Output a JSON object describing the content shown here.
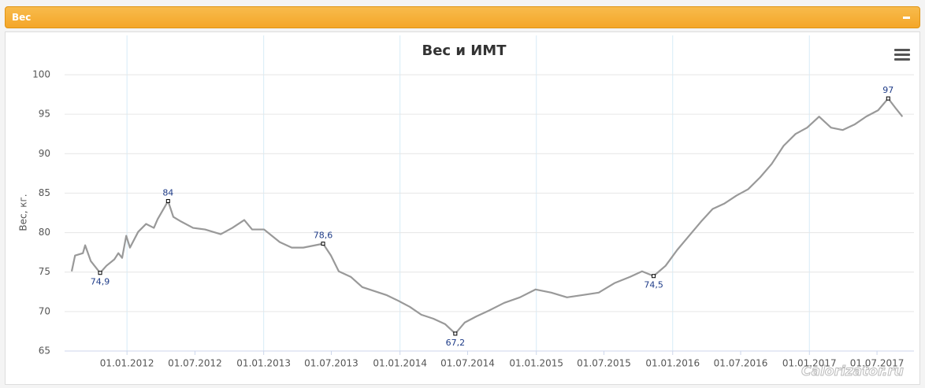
{
  "panel_title": "Вес",
  "watermark": "Calorizator.ru",
  "chart_data": {
    "type": "line",
    "title": "Вес и ИМТ",
    "y_label": "Вес, кг.",
    "x": [
      "06.08.2011",
      "15.08.2011",
      "05.09.2011",
      "11.09.2011",
      "26.09.2011",
      "21.10.2011",
      "07.11.2011",
      "28.11.2011",
      "09.12.2011",
      "19.12.2011",
      "30.12.2011",
      "09.01.2012",
      "31.01.2012",
      "21.02.2012",
      "13.03.2012",
      "23.03.2012",
      "20.04.2012",
      "04.05.2012",
      "25.05.2012",
      "26.06.2012",
      "28.07.2012",
      "08.09.2012",
      "09.10.2012",
      "10.11.2012",
      "01.12.2012",
      "02.01.2013",
      "23.01.2013",
      "13.02.2013",
      "17.03.2013",
      "17.04.2013",
      "19.05.2013",
      "09.06.2013",
      "30.06.2013",
      "21.07.2013",
      "22.08.2013",
      "22.09.2013",
      "24.10.2013",
      "25.11.2013",
      "26.12.2013",
      "27.01.2014",
      "27.02.2014",
      "31.03.2014",
      "02.05.2014",
      "29.05.2014",
      "23.06.2014",
      "25.07.2014",
      "26.08.2014",
      "07.10.2014",
      "18.11.2014",
      "30.12.2014",
      "10.02.2015",
      "24.03.2015",
      "06.05.2015",
      "17.06.2015",
      "29.07.2015",
      "09.09.2015",
      "11.10.2015",
      "11.11.2015",
      "13.12.2015",
      "13.01.2016",
      "14.02.2016",
      "17.03.2016",
      "17.04.2016",
      "19.05.2016",
      "20.06.2016",
      "21.07.2016",
      "22.08.2016",
      "22.09.2016",
      "24.10.2016",
      "25.11.2016",
      "26.12.2016",
      "27.01.2017",
      "28.02.2017",
      "31.03.2017",
      "02.05.2017",
      "02.06.2017",
      "04.07.2017",
      "31.07.2017",
      "21.08.2017",
      "07.09.2017"
    ],
    "series": [
      {
        "name": "Вес",
        "color": "#999999",
        "values": [
          75.1,
          77.1,
          77.4,
          78.4,
          76.4,
          74.9,
          75.8,
          76.6,
          77.4,
          76.8,
          79.6,
          78.1,
          80.1,
          81.1,
          80.6,
          81.7,
          84,
          82,
          81.4,
          80.6,
          80.4,
          79.8,
          80.6,
          81.6,
          80.4,
          80.4,
          79.6,
          78.8,
          78.1,
          78.1,
          78.4,
          78.6,
          77.1,
          75.1,
          74.4,
          73.1,
          72.6,
          72.1,
          71.4,
          70.6,
          69.6,
          69.1,
          68.4,
          67.2,
          68.6,
          69.4,
          70.1,
          71.1,
          71.8,
          72.8,
          72.4,
          71.8,
          72.1,
          72.4,
          73.6,
          74.4,
          75.1,
          74.5,
          75.8,
          77.8,
          79.6,
          81.4,
          83,
          83.7,
          84.7,
          85.5,
          87,
          88.7,
          91,
          92.5,
          93.3,
          94.7,
          93.3,
          93,
          93.7,
          94.7,
          95.5,
          97,
          95.7,
          94.7
        ],
        "value_labels": [
          null,
          null,
          null,
          null,
          null,
          "74,9",
          null,
          null,
          null,
          null,
          null,
          null,
          null,
          null,
          null,
          null,
          "84",
          null,
          null,
          null,
          null,
          null,
          null,
          null,
          null,
          null,
          null,
          null,
          null,
          null,
          null,
          "78,6",
          null,
          null,
          null,
          null,
          null,
          null,
          null,
          null,
          null,
          null,
          null,
          "67,2",
          null,
          null,
          null,
          null,
          null,
          null,
          null,
          null,
          null,
          null,
          null,
          null,
          null,
          "74,5",
          null,
          null,
          null,
          null,
          null,
          null,
          null,
          null,
          null,
          null,
          null,
          null,
          null,
          null,
          null,
          null,
          null,
          null,
          null,
          "97",
          null,
          null
        ]
      }
    ],
    "xlim": [
      "18.07.2011",
      "08.10.2017"
    ],
    "xticks": [
      "01.01.2012",
      "01.07.2012",
      "01.01.2013",
      "01.07.2013",
      "01.01.2014",
      "01.07.2014",
      "01.01.2015",
      "01.07.2015",
      "01.01.2016",
      "01.07.2016",
      "01.01.2017",
      "01.07.2017"
    ],
    "ylim": [
      65,
      100
    ],
    "yticks": [
      65,
      70,
      75,
      80,
      85,
      90,
      95,
      100
    ],
    "grid": true
  }
}
